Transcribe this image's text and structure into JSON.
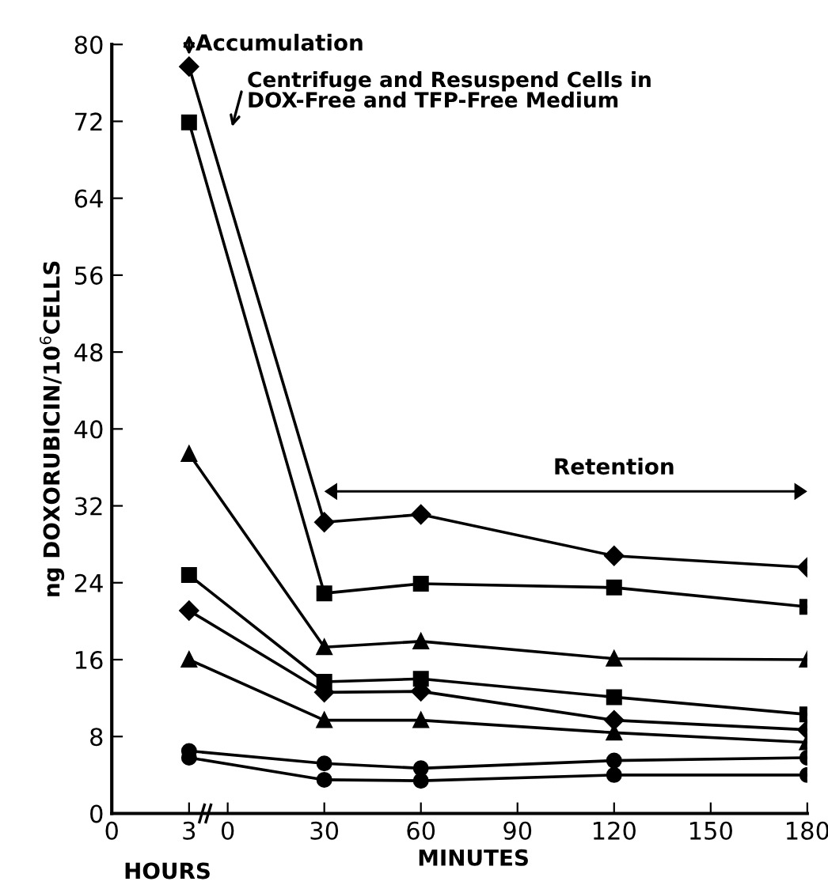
{
  "chart_data": {
    "type": "line",
    "ylabel": "ng DOXORUBICIN/10$^{6}$CELLS",
    "xlabel": "MINUTES",
    "x2label": "HOURS",
    "annotations": [
      "Accumulation",
      "Centrifuge and Resuspend Cells in\nDOX-Free and TFP-Free Medium",
      "Retention"
    ],
    "x": [
      -12,
      30,
      60,
      120,
      180
    ],
    "xlim": [
      -36,
      180
    ],
    "xticks": [
      0,
      30,
      60,
      90,
      120,
      150,
      180
    ],
    "x2lim": [
      0,
      27
    ],
    "x2ticks": [
      0,
      3
    ],
    "ylim": [
      0,
      80
    ],
    "yticks": [
      0,
      8,
      16,
      24,
      32,
      40,
      48,
      56,
      64,
      72,
      80
    ],
    "grid": false,
    "line_style": "solid",
    "series": [
      {
        "color": "#000000",
        "marker": "diamond",
        "values": [
          77.7,
          30.3,
          31.1,
          26.8,
          25.6
        ]
      },
      {
        "color": "#000000",
        "marker": "square",
        "values": [
          71.9,
          22.9,
          23.9,
          23.5,
          21.5
        ]
      },
      {
        "color": "#000000",
        "marker": "triangle",
        "values": [
          37.4,
          17.3,
          17.9,
          16.1,
          16.0
        ]
      },
      {
        "color": "#000000",
        "marker": "square",
        "values": [
          24.8,
          13.7,
          14.0,
          12.1,
          10.3
        ]
      },
      {
        "color": "#000000",
        "marker": "diamond",
        "values": [
          21.1,
          12.6,
          12.7,
          9.7,
          8.7
        ]
      },
      {
        "color": "#000000",
        "marker": "triangle",
        "values": [
          16.0,
          9.7,
          9.7,
          8.4,
          7.4
        ]
      },
      {
        "color": "#000000",
        "marker": "circle",
        "values": [
          6.5,
          5.2,
          4.7,
          5.5,
          5.8
        ]
      },
      {
        "color": "#000000",
        "marker": "circle",
        "values": [
          5.8,
          3.5,
          3.4,
          4.0,
          4.0
        ]
      }
    ]
  }
}
